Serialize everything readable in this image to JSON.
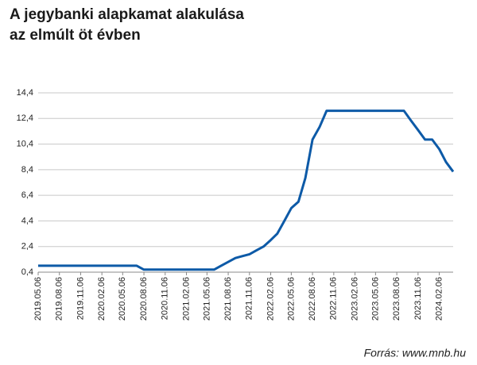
{
  "chart_data": {
    "type": "line",
    "title": [
      "A jegybanki alapkamat alakulása",
      "az elmúlt öt évben"
    ],
    "source": "Forrás: www.mnb.hu",
    "color": "#0d5aa7",
    "grid": true,
    "x": [
      "2019.05.06",
      "2019.06.06",
      "2019.07.06",
      "2019.08.06",
      "2019.09.06",
      "2019.10.06",
      "2019.11.06",
      "2019.12.06",
      "2020.01.06",
      "2020.02.06",
      "2020.03.06",
      "2020.04.06",
      "2020.05.06",
      "2020.06.06",
      "2020.07.06",
      "2020.08.06",
      "2020.09.06",
      "2020.10.06",
      "2020.11.06",
      "2020.12.06",
      "2021.01.06",
      "2021.02.06",
      "2021.03.06",
      "2021.04.06",
      "2021.05.06",
      "2021.06.06",
      "2021.07.06",
      "2021.08.06",
      "2021.09.06",
      "2021.10.06",
      "2021.11.06",
      "2021.12.06",
      "2022.01.06",
      "2022.02.06",
      "2022.03.06",
      "2022.04.06",
      "2022.05.06",
      "2022.06.06",
      "2022.07.06",
      "2022.08.06",
      "2022.09.06",
      "2022.10.06",
      "2022.11.06",
      "2022.12.06",
      "2023.01.06",
      "2023.02.06",
      "2023.03.06",
      "2023.04.06",
      "2023.05.06",
      "2023.06.06",
      "2023.07.06",
      "2023.08.06",
      "2023.09.06",
      "2023.10.06",
      "2023.11.06",
      "2023.12.06",
      "2024.01.06",
      "2024.02.06",
      "2024.03.06",
      "2024.04.06"
    ],
    "values": [
      0.9,
      0.9,
      0.9,
      0.9,
      0.9,
      0.9,
      0.9,
      0.9,
      0.9,
      0.9,
      0.9,
      0.9,
      0.9,
      0.9,
      0.9,
      0.6,
      0.6,
      0.6,
      0.6,
      0.6,
      0.6,
      0.6,
      0.6,
      0.6,
      0.6,
      0.6,
      0.9,
      1.2,
      1.5,
      1.65,
      1.8,
      2.1,
      2.4,
      2.9,
      3.4,
      4.4,
      5.4,
      5.9,
      7.75,
      10.75,
      11.75,
      13,
      13,
      13,
      13,
      13,
      13,
      13,
      13,
      13,
      13,
      13,
      13,
      12.25,
      11.5,
      10.75,
      10.75,
      10.0,
      9.0,
      8.25
    ],
    "xlim": [
      "2019.05.06",
      "2024.04.06"
    ],
    "xticks": [
      "2019.05.06",
      "2019.08.06",
      "2019.11.06",
      "2020.02.06",
      "2020.05.06",
      "2020.08.06",
      "2020.11.06",
      "2021.02.06",
      "2021.05.06",
      "2021.08.06",
      "2021.11.06",
      "2022.02.06",
      "2022.05.06",
      "2022.08.06",
      "2022.11.06",
      "2023.02.06",
      "2023.05.06",
      "2023.08.06",
      "2023.11.06",
      "2024.02.06"
    ],
    "ylim": [
      0.4,
      14.4
    ],
    "yticks": [
      {
        "value": 0.4,
        "label": "0,4"
      },
      {
        "value": 2.4,
        "label": "2,4"
      },
      {
        "value": 4.4,
        "label": "4,4"
      },
      {
        "value": 6.4,
        "label": "6,4"
      },
      {
        "value": 8.4,
        "label": "8,4"
      },
      {
        "value": 10.4,
        "label": "10,4"
      },
      {
        "value": 12.4,
        "label": "12,4"
      },
      {
        "value": 14.4,
        "label": "14,4"
      }
    ]
  }
}
